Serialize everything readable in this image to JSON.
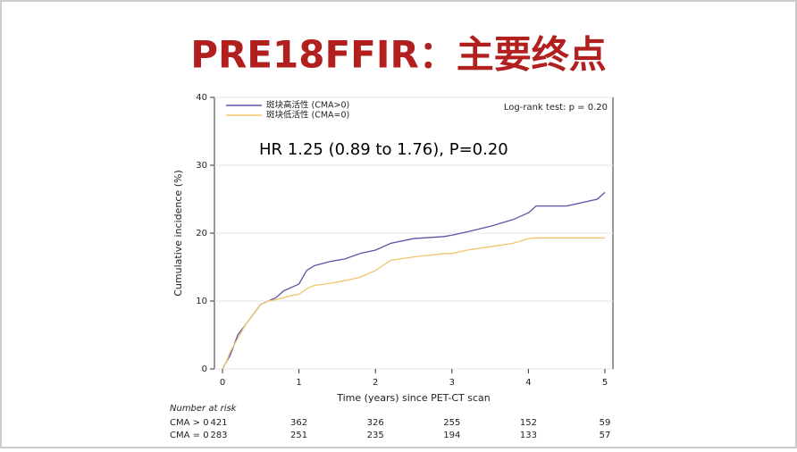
{
  "chart_data": {
    "type": "line",
    "title": "PRE18FFIR：主要终点",
    "annotation": "HR 1.25 (0.89 to 1.76), P=0.20",
    "test_label": "Log-rank test: p = 0.20",
    "xlabel": "Time (years) since PET-CT scan",
    "ylabel": "Cumulative incidence (%)",
    "xlim": [
      0,
      5
    ],
    "xticks": [
      0,
      1,
      2,
      3,
      4,
      5
    ],
    "ylim": [
      0,
      40
    ],
    "yticks": [
      0,
      10,
      20,
      30,
      40
    ],
    "grid": true,
    "legend": "top-left",
    "x": [
      0,
      0.05,
      0.1,
      0.2,
      0.3,
      0.4,
      0.5,
      0.6,
      0.7,
      0.8,
      0.9,
      1.0,
      1.1,
      1.2,
      1.4,
      1.6,
      1.8,
      2.0,
      2.2,
      2.5,
      2.9,
      3.0,
      3.2,
      3.5,
      3.8,
      4.0,
      4.1,
      4.5,
      4.9,
      5.0
    ],
    "series": [
      {
        "name": "斑块高活性 (CMA>0)",
        "color": "#5b55a8",
        "values": [
          0,
          1,
          2,
          5,
          6.5,
          8,
          9.5,
          10,
          10.5,
          11.5,
          12,
          12.5,
          14.5,
          15.2,
          15.8,
          16.2,
          17,
          17.5,
          18.5,
          19.2,
          19.5,
          19.7,
          20.2,
          21,
          22,
          23,
          24,
          24,
          25,
          26
        ]
      },
      {
        "name": "斑块低活性 (CMA=0)",
        "color": "#f2c46e",
        "values": [
          0,
          1,
          2.5,
          4.5,
          6.5,
          8,
          9.5,
          10,
          10.2,
          10.5,
          10.8,
          11,
          11.8,
          12.3,
          12.6,
          13,
          13.5,
          14.5,
          16,
          16.5,
          17,
          17,
          17.5,
          18,
          18.5,
          19.2,
          19.3,
          19.3,
          19.3,
          19.3
        ]
      }
    ],
    "risk_table": {
      "title": "Number at risk",
      "rows": [
        {
          "label": "CMA > 0",
          "values": [
            421,
            362,
            326,
            255,
            152,
            59
          ]
        },
        {
          "label": "CMA = 0",
          "values": [
            283,
            251,
            235,
            194,
            133,
            57
          ]
        }
      ]
    }
  }
}
